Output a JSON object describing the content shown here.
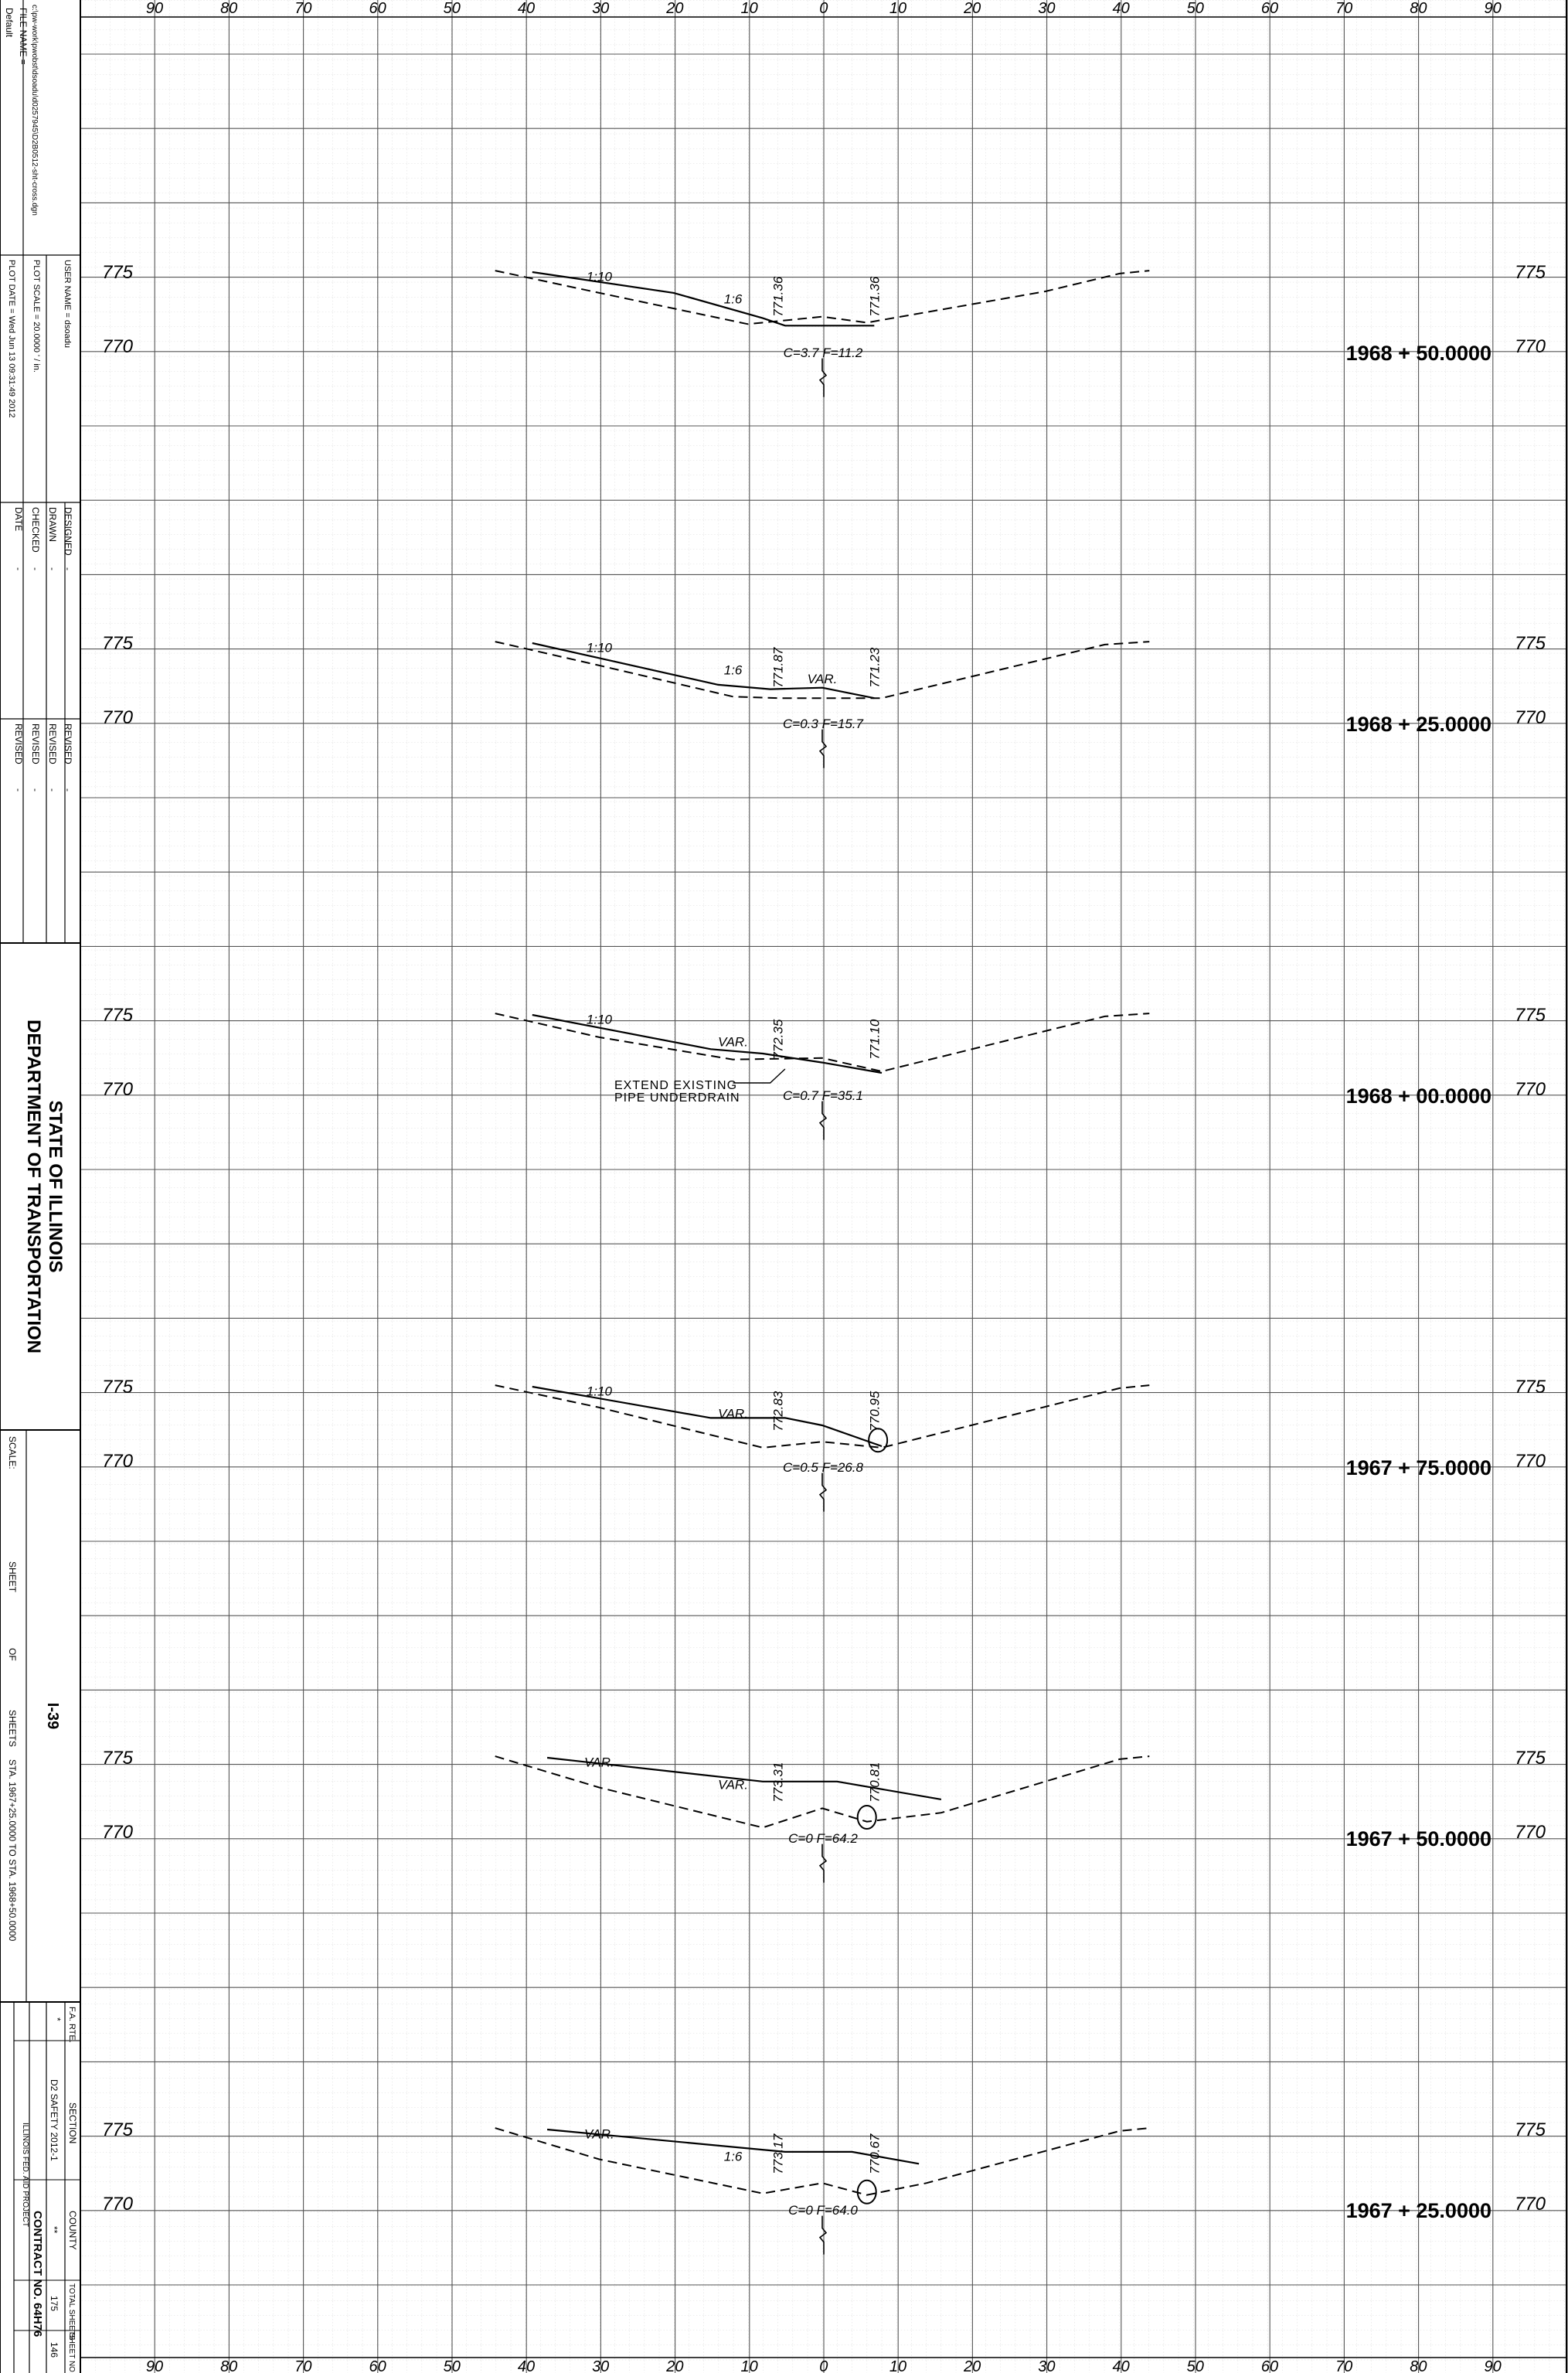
{
  "title_block": {
    "default_label": "Default",
    "file_name_label": "FILE NAME =",
    "file_name_value": "c:\\pw-work\\pwobst\\dsoadu\\d0257945\\D2B0512-sht-cross.dgn",
    "user_name_label": "USER NAME = dsoadu",
    "plot_scale_label": "PLOT SCALE = 20.0000 ' / in.",
    "plot_date_label": "PLOT DATE = Wed Jun 13 09:31:49 2012",
    "designed_label": "DESIGNED",
    "drawn_label": "DRAWN",
    "checked_label": "CHECKED",
    "date_label": "DATE",
    "revised_label": "REVISED",
    "dash": "-",
    "agency_line1": "STATE OF ILLINOIS",
    "agency_line2": "DEPARTMENT OF TRANSPORTATION",
    "scale_label": "SCALE:",
    "sheet_label": "SHEET",
    "of_label": "OF",
    "sheets_label": "SHEETS",
    "route_name": "I-39",
    "sta_range": "STA. 1967+25.0000 TO STA. 1968+50.0000",
    "fa_rte_label": "F.A. RTE.",
    "section_label": "SECTION",
    "county_label": "COUNTY",
    "total_sheets_label": "TOTAL SHEETS",
    "sheet_no_label": "SHEET NO.",
    "fa_rte_value": "*",
    "section_value": "D2 SAFETY 2012-1",
    "county_value": "**",
    "total_sheets_value": "175",
    "sheet_no_value": "146",
    "contract_label": "CONTRACT NO. 64H76",
    "project_label": "ILLINOIS FED. AID PROJECT"
  },
  "axis": {
    "ticks": [
      "90",
      "80",
      "70",
      "60",
      "50",
      "40",
      "30",
      "20",
      "10",
      "0",
      "10",
      "20",
      "30",
      "40",
      "50",
      "60",
      "70",
      "80",
      "90"
    ]
  },
  "sections": [
    {
      "station": "1968 + 50.0000",
      "elev_hi": "775",
      "elev_lo": "770",
      "cut_fill": "C=3.7   F=11.2",
      "slope_labels": [
        "1:10",
        "1:6"
      ],
      "elev_labels": [
        "771.36",
        "771.36"
      ],
      "note": ""
    },
    {
      "station": "1968 + 25.0000",
      "elev_hi": "775",
      "elev_lo": "770",
      "cut_fill": "C=0.3   F=15.7",
      "slope_labels": [
        "1:10",
        "1:6",
        "VAR."
      ],
      "elev_labels": [
        "771.87",
        "771.23"
      ],
      "note": ""
    },
    {
      "station": "1968 + 00.0000",
      "elev_hi": "775",
      "elev_lo": "770",
      "cut_fill": "C=0.7   F=35.1",
      "slope_labels": [
        "1:10",
        "VAR."
      ],
      "elev_labels": [
        "772.35",
        "771.10"
      ],
      "note": "EXTEND EXISTING PIPE UNDERDRAIN"
    },
    {
      "station": "1967 + 75.0000",
      "elev_hi": "775",
      "elev_lo": "770",
      "cut_fill": "C=0.5   F=26.8",
      "slope_labels": [
        "1:10",
        "VAR."
      ],
      "elev_labels": [
        "772.83",
        "770.95"
      ],
      "note": ""
    },
    {
      "station": "1967 + 50.0000",
      "elev_hi": "775",
      "elev_lo": "770",
      "cut_fill": "C=0   F=64.2",
      "slope_labels": [
        "VAR.",
        "VAR."
      ],
      "elev_labels": [
        "773.31",
        "770.81"
      ],
      "note": ""
    },
    {
      "station": "1967 + 25.0000",
      "elev_hi": "775",
      "elev_lo": "770",
      "cut_fill": "C=0   F=64.0",
      "slope_labels": [
        "VAR.",
        "1:6"
      ],
      "elev_labels": [
        "773.17",
        "770.67"
      ],
      "note": ""
    }
  ]
}
